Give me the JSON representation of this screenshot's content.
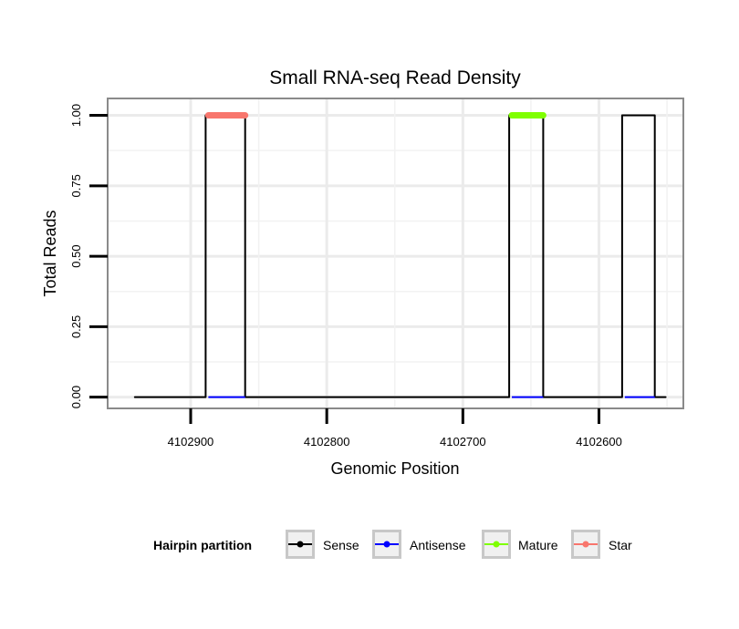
{
  "chart_data": {
    "type": "line",
    "title": "Small RNA-seq Read Density",
    "xlabel": "Genomic Position",
    "ylabel": "Total Reads",
    "x_reversed": true,
    "xlim": [
      4102961,
      4102538
    ],
    "ylim": [
      -0.04,
      1.06
    ],
    "x_ticks": [
      4102900,
      4102800,
      4102700,
      4102600
    ],
    "x_tick_labels": [
      "4102900",
      "4102800",
      "4102700",
      "4102600"
    ],
    "y_ticks": [
      0,
      0.25,
      0.5,
      0.75,
      1
    ],
    "y_tick_labels": [
      "0.00",
      "0.25",
      "0.50",
      "0.75",
      "1.00"
    ],
    "grid": true,
    "legend": {
      "title": "Hairpin partition",
      "position": "bottom",
      "entries": [
        "Sense",
        "Antisense",
        "Mature",
        "Star"
      ]
    },
    "series": [
      {
        "name": "Sense",
        "color": "#000000",
        "x": [
          4102941,
          4102889,
          4102889,
          4102887,
          4102887,
          4102862,
          4102862,
          4102860,
          4102860,
          4102666,
          4102666,
          4102664,
          4102664,
          4102643,
          4102643,
          4102641,
          4102641,
          4102583,
          4102583,
          4102581,
          4102581,
          4102561,
          4102561,
          4102559,
          4102559,
          4102551
        ],
        "values": [
          0,
          0,
          1,
          1,
          1,
          1,
          1,
          1,
          0,
          0,
          1,
          1,
          1,
          1,
          1,
          1,
          0,
          0,
          1,
          1,
          1,
          1,
          1,
          1,
          0,
          0
        ]
      },
      {
        "name": "Antisense",
        "color": "#0000ff",
        "x": [
          4102887,
          4102860,
          4102664,
          4102641,
          4102581,
          4102559
        ],
        "values": [
          0,
          0,
          0,
          0,
          0,
          0
        ]
      },
      {
        "name": "Mature",
        "color": "#7fff00",
        "x": [
          4102664,
          4102641
        ],
        "values": [
          1,
          1
        ]
      },
      {
        "name": "Star",
        "color": "#f8766d",
        "x": [
          4102887,
          4102860
        ],
        "values": [
          1,
          1
        ]
      }
    ]
  }
}
